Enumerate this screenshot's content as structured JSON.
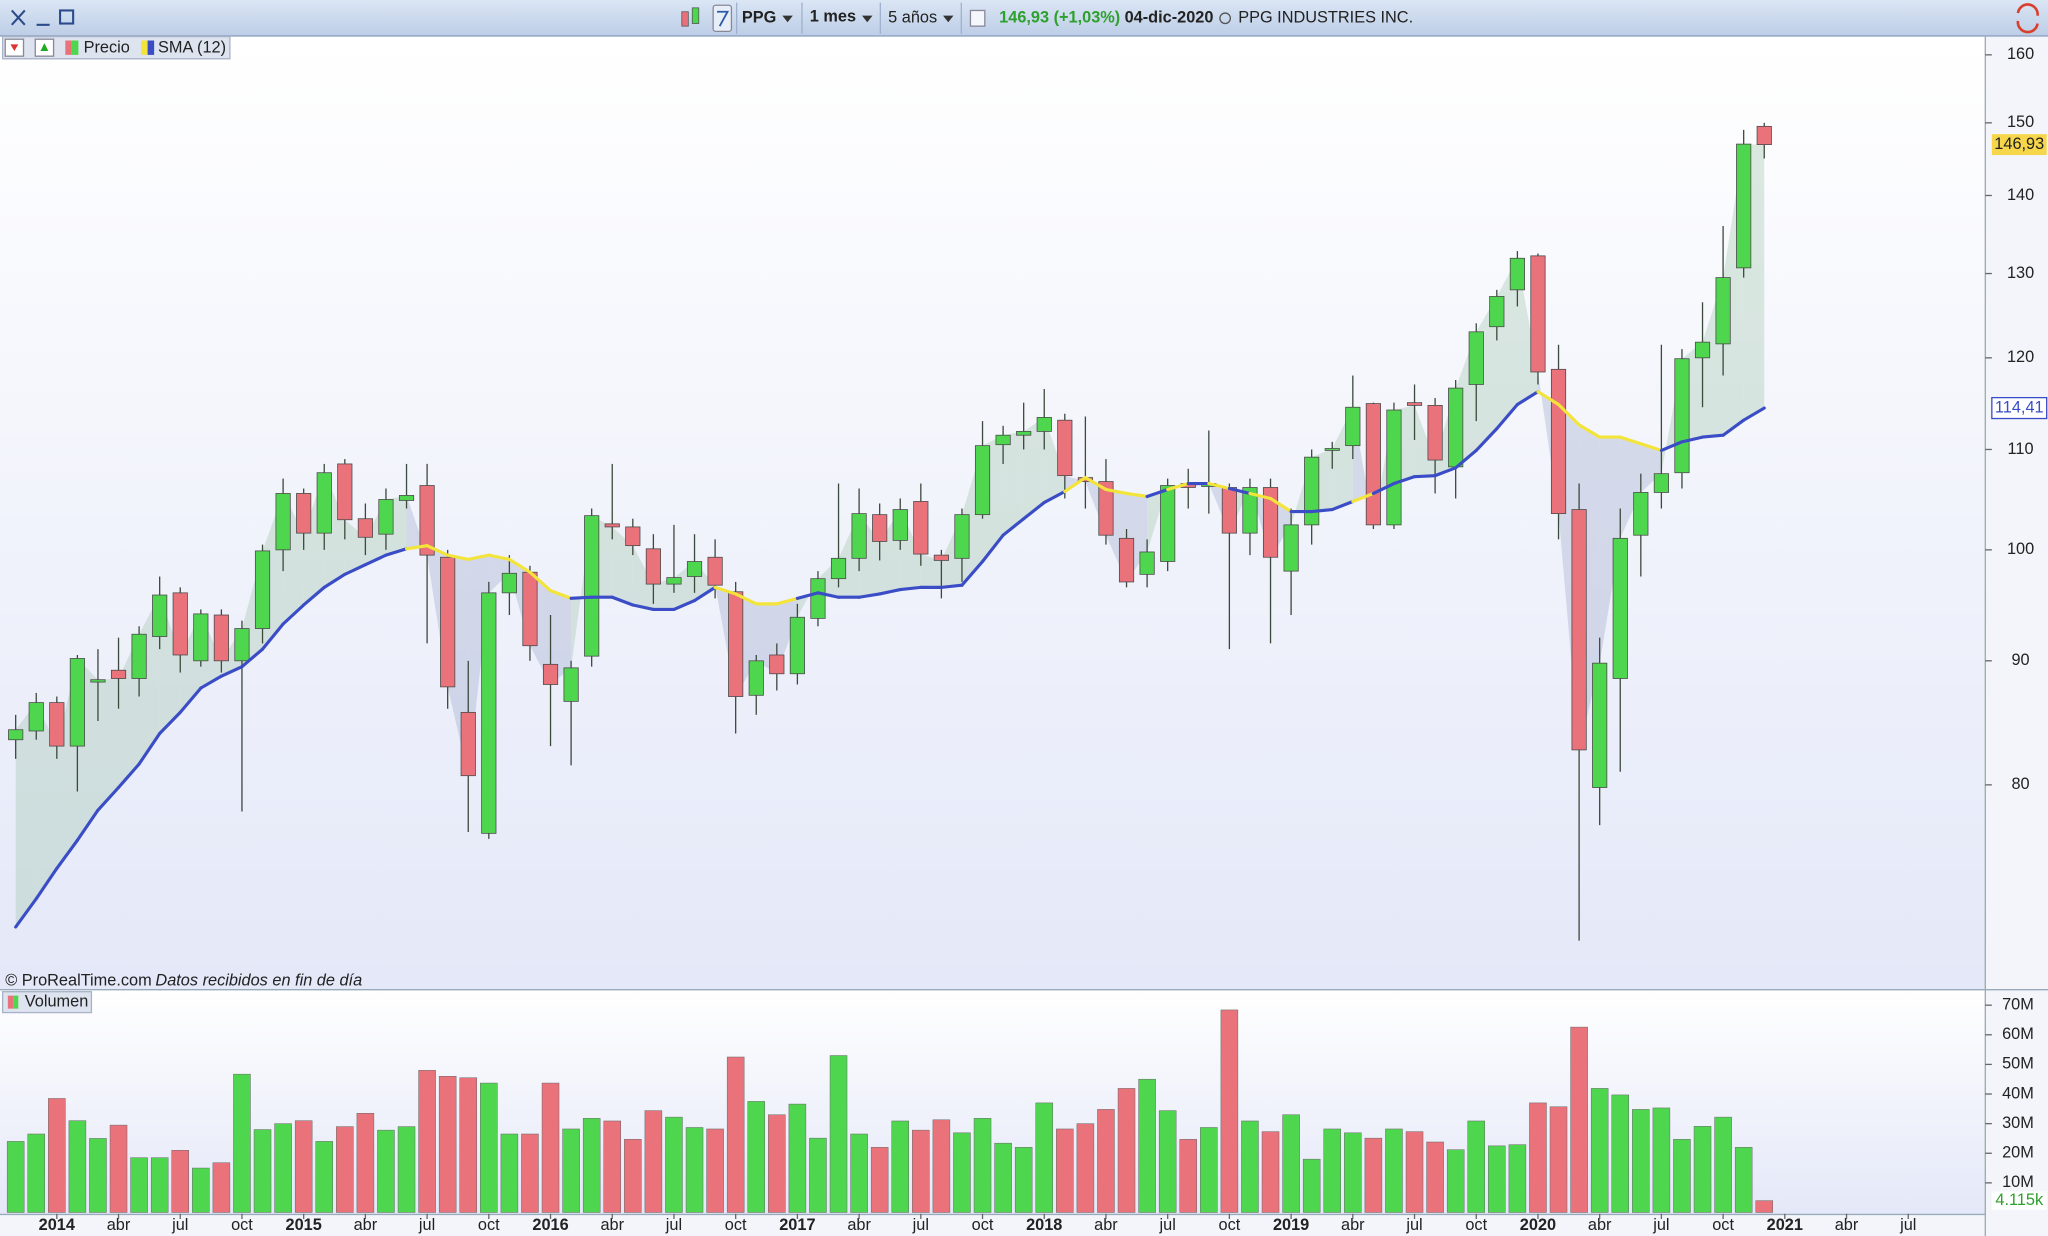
{
  "toolbar": {
    "symbol": "PPG",
    "interval": "1 mes",
    "range": "5 años",
    "quote": "146,93 (+1,03%)",
    "date": "04-dic-2020",
    "name": "PPG INDUSTRIES INC."
  },
  "footer": {
    "copyright": "© ProRealTime.com",
    "note": "Datos recibidos en fin de día"
  },
  "chart_data": {
    "type": "candlestick",
    "log_scale": true,
    "up_color": "#4fd64f",
    "down_color": "#ea737b",
    "area_up_color": "#9fc4a8",
    "area_down_color": "#9aa6c8",
    "name": "Precio",
    "close_label": "146,93",
    "categories": [
      null,
      null,
      "2014",
      null,
      null,
      "abr",
      null,
      null,
      "jul",
      null,
      null,
      "oct",
      null,
      null,
      "2015",
      null,
      null,
      "abr",
      null,
      null,
      "jul",
      null,
      null,
      "oct",
      null,
      null,
      "2016",
      null,
      null,
      "abr",
      null,
      null,
      "jul",
      null,
      null,
      "oct",
      null,
      null,
      "2017",
      null,
      null,
      "abr",
      null,
      null,
      "jul",
      null,
      null,
      "oct",
      null,
      null,
      "2018",
      null,
      null,
      "abr",
      null,
      null,
      "jul",
      null,
      null,
      "oct",
      null,
      null,
      "2019",
      null,
      null,
      "abr",
      null,
      null,
      "jul",
      null,
      null,
      "oct",
      null,
      null,
      "2020",
      null,
      null,
      "abr",
      null,
      null,
      "jul",
      null,
      null,
      "oct",
      null,
      null,
      "2021",
      null,
      null,
      "abr",
      null,
      null,
      "jul",
      null,
      null,
      null
    ],
    "open": [
      83.5,
      84.2,
      86.5,
      83,
      88.2,
      89.2,
      88.5,
      92.1,
      96,
      90,
      94,
      90,
      92.8,
      100,
      105.5,
      101.6,
      108.5,
      103,
      101.5,
      104.8,
      106.3,
      99.3,
      85.7,
      76.4,
      96,
      97.9,
      89.7,
      86.6,
      90.4,
      102.5,
      102.2,
      100.1,
      96.8,
      97.5,
      99.3,
      96.1,
      87.1,
      90.5,
      88.9,
      93.7,
      97.3,
      99.2,
      103.4,
      100.9,
      104.7,
      99.5,
      99.2,
      103.4,
      110.5,
      111.5,
      111.9,
      113.1,
      107.1,
      106.7,
      101.1,
      97.7,
      98.9,
      106.5,
      106.2,
      106.1,
      101.6,
      106.1,
      98,
      102.4,
      109.9,
      110.4,
      114.9,
      102.4,
      115,
      114.7,
      108.2,
      117,
      123.6,
      128,
      132.2,
      118.7,
      103.9,
      79.8,
      88.5,
      101.4,
      105.6,
      107.6,
      120,
      121.6,
      130.7,
      149.5,
      null,
      null,
      null,
      null,
      null,
      null,
      null,
      null,
      null,
      null
    ],
    "high": [
      85.5,
      87.3,
      87,
      90.5,
      91,
      92,
      93,
      97.5,
      96.5,
      94.5,
      94.5,
      93.5,
      100.5,
      107,
      106,
      108.5,
      109,
      104.5,
      106,
      108.5,
      108.5,
      100,
      90,
      97,
      99.5,
      98.5,
      94,
      90,
      104,
      108.5,
      103,
      101.5,
      102.4,
      101.5,
      101,
      97,
      90.5,
      91.5,
      95,
      98,
      106.5,
      106,
      104.5,
      105,
      106.5,
      100,
      104,
      113,
      112.5,
      115,
      116.5,
      113.8,
      113.5,
      109,
      102,
      101,
      107,
      108,
      112,
      106.5,
      107,
      107,
      104,
      110,
      110.8,
      118,
      115,
      115,
      117,
      115.5,
      117.5,
      124,
      128,
      132.8,
      132.5,
      121.5,
      106.5,
      92,
      104,
      107.5,
      121.5,
      121,
      126.5,
      136,
      149,
      150,
      null,
      null,
      null,
      null,
      null,
      null,
      null,
      null,
      null,
      null
    ],
    "low": [
      82,
      83.5,
      82,
      79.5,
      85,
      86,
      87,
      91,
      89,
      89.5,
      89,
      78,
      91.5,
      98,
      100,
      100,
      101,
      99.5,
      100,
      104,
      91.5,
      86,
      76.5,
      76,
      94,
      90,
      83,
      81.5,
      89.5,
      101,
      99.5,
      95,
      96,
      96,
      95.5,
      84,
      85.5,
      87.5,
      88,
      93,
      96.5,
      98,
      99,
      100,
      98.5,
      95.5,
      97,
      103,
      108.5,
      110,
      110,
      105,
      104,
      100.5,
      96.5,
      96.5,
      98,
      104,
      103.5,
      91,
      99.5,
      91.5,
      94,
      100.5,
      108,
      109,
      102,
      102,
      111,
      105.5,
      105,
      113,
      122,
      126,
      117,
      101,
      69,
      77,
      81,
      97.5,
      104,
      106,
      114.5,
      118,
      129.5,
      145,
      null,
      null,
      null,
      null,
      null,
      null,
      null,
      null,
      null,
      null
    ],
    "close": [
      84.3,
      86.5,
      83,
      90.2,
      88.4,
      88.5,
      92.3,
      95.8,
      90.5,
      94.1,
      90,
      92.8,
      99.9,
      105.5,
      101.6,
      107.6,
      102.9,
      101.2,
      104.9,
      105.3,
      99.5,
      87.8,
      80.7,
      96,
      97.8,
      91.3,
      88,
      89.4,
      103.3,
      102.2,
      100.4,
      96.8,
      97.4,
      98.9,
      96.7,
      87,
      90,
      88.9,
      93.8,
      97.3,
      99.2,
      103.5,
      100.8,
      103.9,
      99.6,
      99,
      103.4,
      110.4,
      111.5,
      111.9,
      113.4,
      107.3,
      106.7,
      101.4,
      97,
      99.8,
      106.3,
      106.1,
      106.5,
      101.6,
      106.1,
      99.3,
      102.4,
      109.2,
      110.1,
      114.5,
      102.4,
      114.2,
      114.7,
      108.9,
      116.6,
      123,
      127.2,
      131.9,
      118.4,
      103.5,
      82.7,
      89.8,
      101.1,
      105.6,
      107.5,
      119.9,
      121.8,
      129.5,
      147,
      146.93,
      null,
      null,
      null,
      null,
      null,
      null,
      null,
      null,
      null,
      null
    ],
    "ylim": [
      65.9,
      162.8
    ],
    "yticks": [
      80,
      90,
      100,
      110,
      120,
      130,
      140,
      150,
      160
    ],
    "sma": {
      "name": "SMA (12)",
      "color": "#3a4cc6",
      "below_color": "#f3e43a",
      "value_label": "114,41",
      "values": [
        69.9,
        71.8,
        73.9,
        75.9,
        78.1,
        79.8,
        81.6,
        84,
        85.7,
        87.7,
        88.7,
        89.5,
        91,
        93.2,
        94.9,
        96.5,
        97.7,
        98.6,
        99.5,
        100.1,
        100.4,
        99.5,
        99.1,
        99.5,
        99.1,
        97.9,
        96.2,
        95.5,
        95.6,
        95.6,
        94.9,
        94.5,
        94.5,
        95.3,
        96.5,
        95.9,
        95,
        95,
        95.5,
        96,
        95.6,
        95.6,
        95.9,
        96.3,
        96.5,
        96.5,
        96.7,
        98.9,
        101.4,
        103,
        104.6,
        105.7,
        107.1,
        105.9,
        105.5,
        105.2,
        105.9,
        106.5,
        106.5,
        106,
        105.5,
        105,
        103.7,
        103.7,
        103.9,
        104.7,
        105.5,
        106.5,
        107.2,
        107.3,
        108.1,
        109.9,
        112.2,
        114.8,
        116.2,
        114.8,
        112.6,
        111.3,
        111.3,
        110.6,
        109.9,
        110.8,
        111.3,
        111.5,
        113.1,
        114.41,
        null,
        null,
        null,
        null,
        null,
        null,
        null,
        null,
        null,
        null
      ]
    },
    "volume": {
      "name": "Volumen",
      "last_label": "4.115k",
      "ylim": [
        0,
        75
      ],
      "yticks": [
        {
          "value": 10,
          "label": "10M"
        },
        {
          "value": 20,
          "label": "20M"
        },
        {
          "value": 30,
          "label": "30M"
        },
        {
          "value": 40,
          "label": "40M"
        },
        {
          "value": 50,
          "label": "50M"
        },
        {
          "value": 60,
          "label": "60M"
        },
        {
          "value": 70,
          "label": "70M"
        }
      ],
      "values": [
        24,
        26.5,
        38.5,
        31,
        25,
        29.5,
        18.5,
        18.5,
        21,
        15,
        16.8,
        46.7,
        28,
        30,
        31,
        24,
        29,
        33.5,
        27.8,
        29,
        48,
        46,
        45.5,
        43.7,
        26.5,
        26.5,
        43.7,
        28.2,
        31.8,
        30.9,
        24.7,
        34.4,
        32.2,
        28.7,
        28.2,
        52.5,
        37.5,
        33,
        36.6,
        25.1,
        53,
        26.5,
        22,
        30.9,
        27.8,
        31.3,
        26.9,
        31.8,
        23.4,
        22,
        37,
        28.2,
        30,
        34.8,
        41.9,
        45,
        34.4,
        24.7,
        28.7,
        68.4,
        30.9,
        27.3,
        33,
        18,
        28.2,
        26.9,
        25.1,
        28.2,
        27.3,
        23.8,
        21.2,
        30.9,
        22.5,
        22.9,
        37,
        35.7,
        62.6,
        41.9,
        39.7,
        34.8,
        35.3,
        24.7,
        29.1,
        32.2,
        22,
        4,
        null,
        null,
        null,
        null,
        null,
        null,
        null,
        null,
        null,
        null
      ]
    }
  }
}
